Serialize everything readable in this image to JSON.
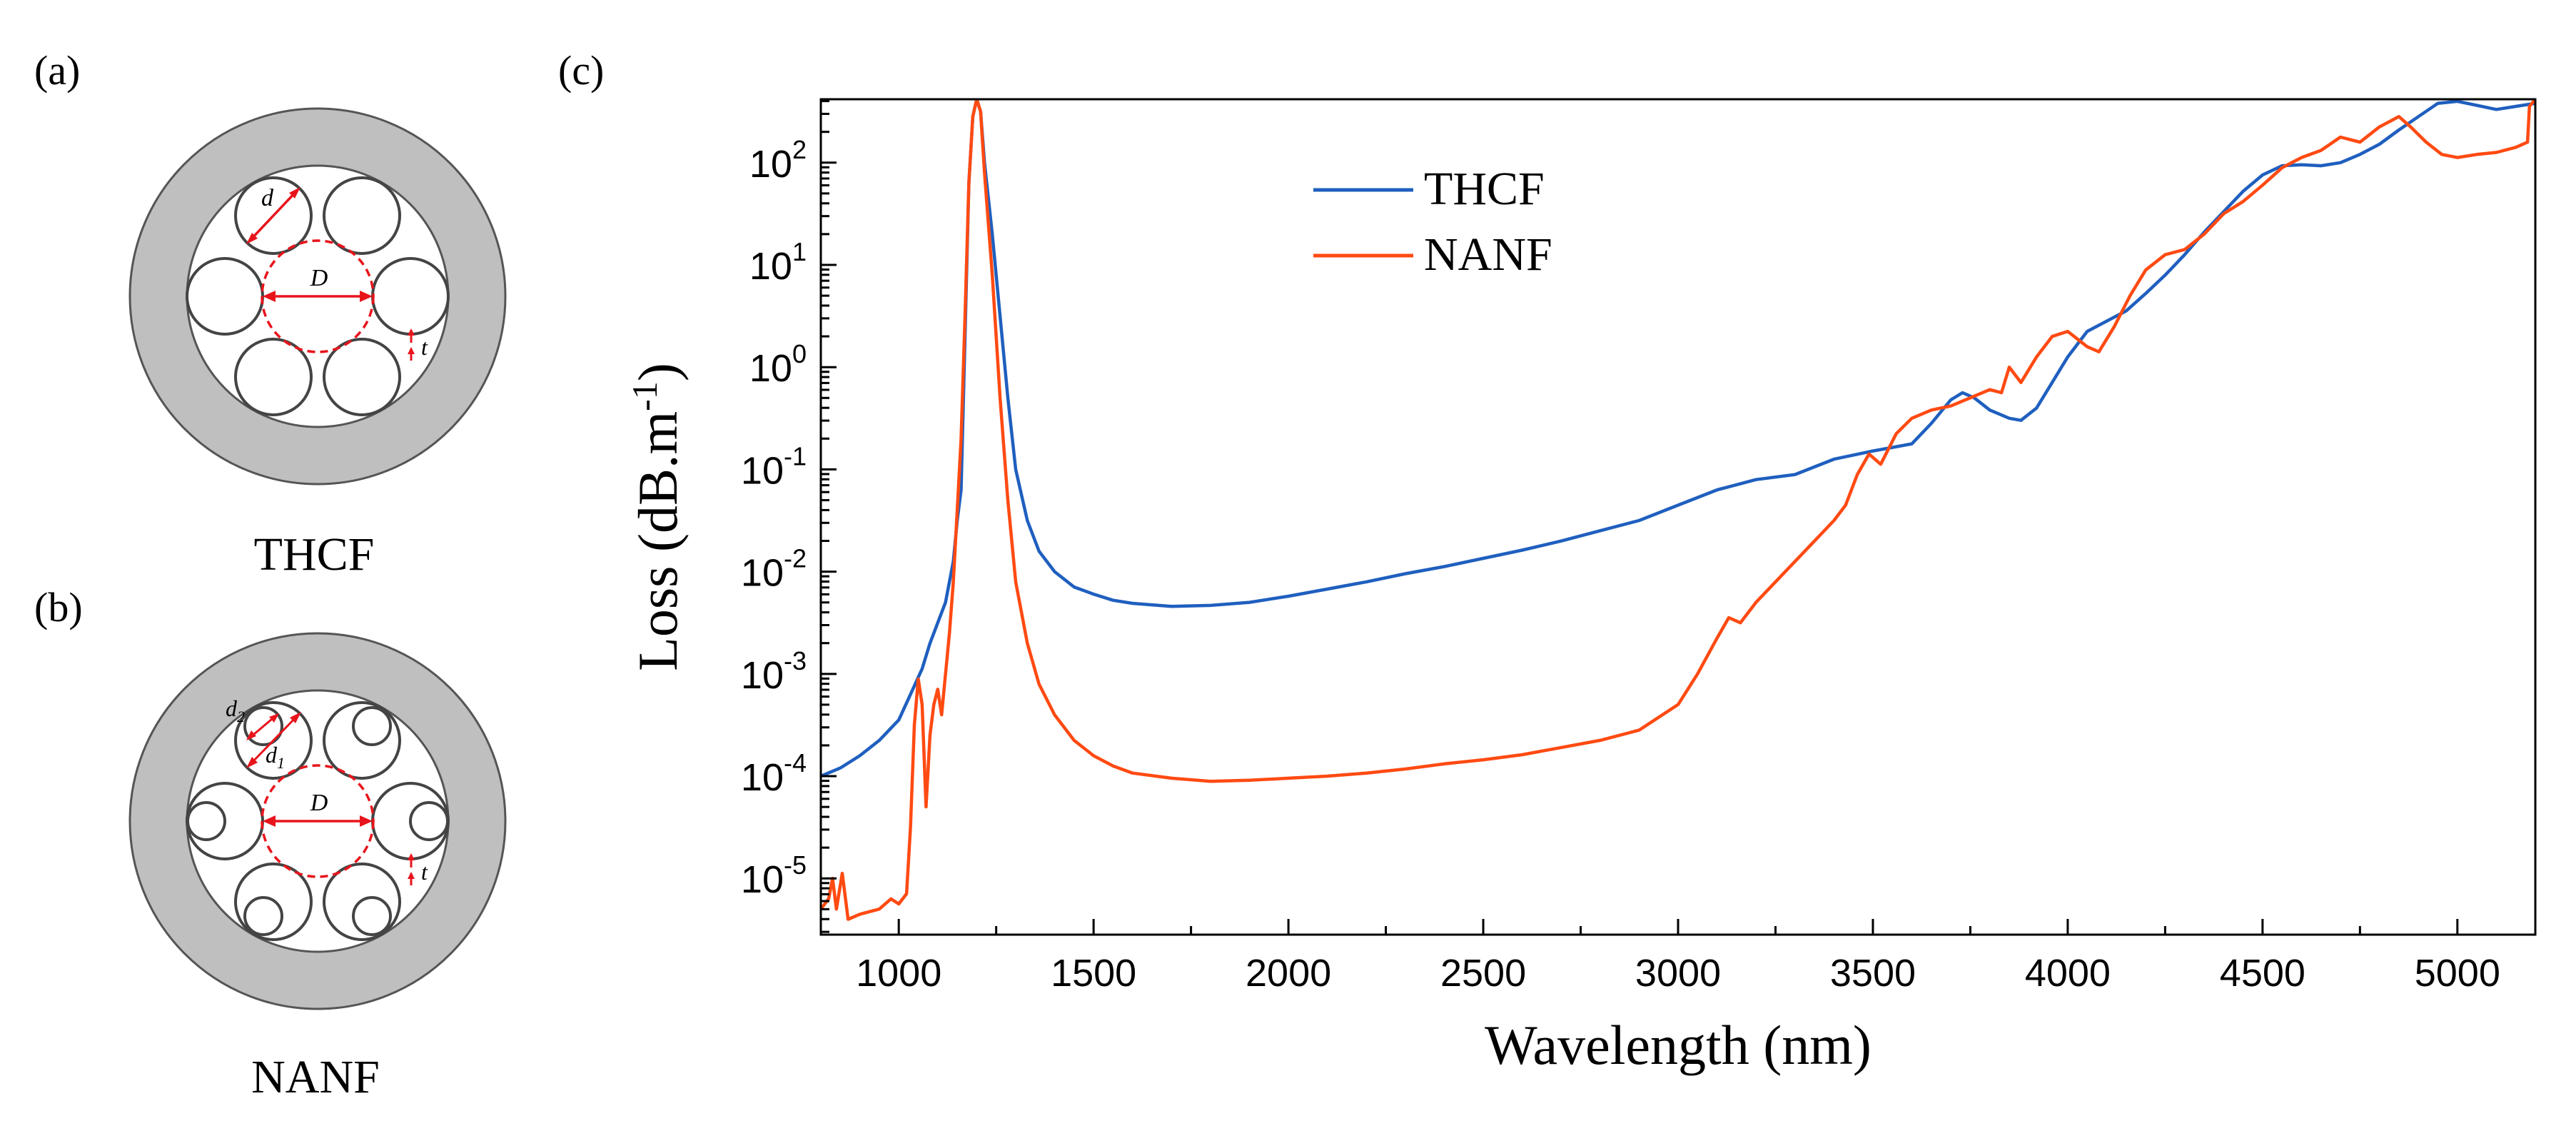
{
  "panels": {
    "a": {
      "panel_label": "(a)",
      "caption": "THCF",
      "dims": {
        "d": "d",
        "D": "D",
        "t": "t"
      }
    },
    "b": {
      "panel_label": "(b)",
      "caption": "NANF",
      "dims": {
        "d2": "d",
        "d2_sub": "2",
        "d1": "d",
        "d1_sub": "1",
        "D": "D",
        "t": "t"
      }
    },
    "c": {
      "panel_label": "(c)"
    }
  },
  "colors": {
    "thcf": "#1f5fbf",
    "nanf": "#ff4a12",
    "cladding": "#bfbfbf",
    "dim_red": "#e8141c"
  },
  "chart_data": {
    "type": "line",
    "xlabel": "Wavelength (nm)",
    "ylabel_main": "Loss (dB.m",
    "ylabel_sup": "-1",
    "ylabel_close": ")",
    "xlim": [
      800,
      5200
    ],
    "ylim_log10": [
      -5.55,
      2.62
    ],
    "yscale": "log",
    "xticks": [
      1000,
      1500,
      2000,
      2500,
      3000,
      3500,
      4000,
      4500,
      5000
    ],
    "yticks": [
      {
        "exp": 2,
        "base": "10",
        "sup": "2"
      },
      {
        "exp": 1,
        "base": "10",
        "sup": "1"
      },
      {
        "exp": 0,
        "base": "10",
        "sup": "0"
      },
      {
        "exp": -1,
        "base": "10",
        "sup": "-1"
      },
      {
        "exp": -2,
        "base": "10",
        "sup": "-2"
      },
      {
        "exp": -3,
        "base": "10",
        "sup": "-3"
      },
      {
        "exp": -4,
        "base": "10",
        "sup": "-4"
      },
      {
        "exp": -5,
        "base": "10",
        "sup": "-5"
      }
    ],
    "legend_position": "top-left",
    "series": [
      {
        "name": "THCF",
        "color": "#1f5fbf",
        "points": [
          [
            800,
            -4.0
          ],
          [
            850,
            -3.92
          ],
          [
            900,
            -3.8
          ],
          [
            950,
            -3.65
          ],
          [
            1000,
            -3.45
          ],
          [
            1030,
            -3.2
          ],
          [
            1060,
            -2.95
          ],
          [
            1080,
            -2.7
          ],
          [
            1100,
            -2.5
          ],
          [
            1120,
            -2.3
          ],
          [
            1140,
            -1.9
          ],
          [
            1150,
            -1.5
          ],
          [
            1160,
            -1.2
          ],
          [
            1170,
            0.3
          ],
          [
            1180,
            1.8
          ],
          [
            1190,
            2.45
          ],
          [
            1200,
            2.62
          ],
          [
            1210,
            2.5
          ],
          [
            1220,
            2.0
          ],
          [
            1240,
            1.3
          ],
          [
            1260,
            0.5
          ],
          [
            1280,
            -0.3
          ],
          [
            1300,
            -1.0
          ],
          [
            1330,
            -1.5
          ],
          [
            1360,
            -1.8
          ],
          [
            1400,
            -2.0
          ],
          [
            1450,
            -2.15
          ],
          [
            1500,
            -2.22
          ],
          [
            1550,
            -2.28
          ],
          [
            1600,
            -2.31
          ],
          [
            1700,
            -2.34
          ],
          [
            1800,
            -2.33
          ],
          [
            1900,
            -2.3
          ],
          [
            2000,
            -2.24
          ],
          [
            2100,
            -2.17
          ],
          [
            2200,
            -2.1
          ],
          [
            2300,
            -2.02
          ],
          [
            2400,
            -1.95
          ],
          [
            2500,
            -1.87
          ],
          [
            2600,
            -1.79
          ],
          [
            2700,
            -1.7
          ],
          [
            2800,
            -1.6
          ],
          [
            2900,
            -1.5
          ],
          [
            3000,
            -1.35
          ],
          [
            3100,
            -1.2
          ],
          [
            3200,
            -1.1
          ],
          [
            3300,
            -1.05
          ],
          [
            3400,
            -0.9
          ],
          [
            3500,
            -0.82
          ],
          [
            3600,
            -0.75
          ],
          [
            3650,
            -0.55
          ],
          [
            3700,
            -0.32
          ],
          [
            3730,
            -0.25
          ],
          [
            3760,
            -0.3
          ],
          [
            3800,
            -0.42
          ],
          [
            3850,
            -0.5
          ],
          [
            3880,
            -0.52
          ],
          [
            3920,
            -0.4
          ],
          [
            3960,
            -0.15
          ],
          [
            4000,
            0.1
          ],
          [
            4050,
            0.35
          ],
          [
            4100,
            0.45
          ],
          [
            4150,
            0.55
          ],
          [
            4200,
            0.72
          ],
          [
            4250,
            0.9
          ],
          [
            4300,
            1.1
          ],
          [
            4350,
            1.32
          ],
          [
            4400,
            1.52
          ],
          [
            4450,
            1.72
          ],
          [
            4500,
            1.88
          ],
          [
            4550,
            1.97
          ],
          [
            4600,
            1.98
          ],
          [
            4650,
            1.97
          ],
          [
            4700,
            2.0
          ],
          [
            4750,
            2.08
          ],
          [
            4800,
            2.18
          ],
          [
            4850,
            2.32
          ],
          [
            4900,
            2.45
          ],
          [
            4950,
            2.58
          ],
          [
            5000,
            2.6
          ],
          [
            5050,
            2.56
          ],
          [
            5100,
            2.52
          ],
          [
            5150,
            2.55
          ],
          [
            5200,
            2.58
          ]
        ]
      },
      {
        "name": "NANF",
        "color": "#ff4a12",
        "points": [
          [
            800,
            -5.3
          ],
          [
            820,
            -5.2
          ],
          [
            830,
            -5.0
          ],
          [
            840,
            -5.3
          ],
          [
            855,
            -4.95
          ],
          [
            870,
            -5.4
          ],
          [
            900,
            -5.35
          ],
          [
            950,
            -5.3
          ],
          [
            980,
            -5.2
          ],
          [
            1000,
            -5.25
          ],
          [
            1020,
            -5.15
          ],
          [
            1030,
            -4.5
          ],
          [
            1040,
            -3.5
          ],
          [
            1050,
            -3.05
          ],
          [
            1060,
            -3.3
          ],
          [
            1070,
            -4.3
          ],
          [
            1080,
            -3.6
          ],
          [
            1090,
            -3.3
          ],
          [
            1100,
            -3.15
          ],
          [
            1110,
            -3.4
          ],
          [
            1120,
            -3.0
          ],
          [
            1130,
            -2.6
          ],
          [
            1140,
            -2.1
          ],
          [
            1150,
            -1.4
          ],
          [
            1160,
            -0.7
          ],
          [
            1170,
            0.5
          ],
          [
            1180,
            1.8
          ],
          [
            1190,
            2.45
          ],
          [
            1200,
            2.62
          ],
          [
            1210,
            2.5
          ],
          [
            1220,
            1.9
          ],
          [
            1240,
            0.9
          ],
          [
            1260,
            -0.3
          ],
          [
            1280,
            -1.3
          ],
          [
            1300,
            -2.1
          ],
          [
            1330,
            -2.7
          ],
          [
            1360,
            -3.1
          ],
          [
            1400,
            -3.4
          ],
          [
            1450,
            -3.65
          ],
          [
            1500,
            -3.8
          ],
          [
            1550,
            -3.9
          ],
          [
            1600,
            -3.97
          ],
          [
            1700,
            -4.02
          ],
          [
            1800,
            -4.05
          ],
          [
            1900,
            -4.04
          ],
          [
            2000,
            -4.02
          ],
          [
            2100,
            -4.0
          ],
          [
            2200,
            -3.97
          ],
          [
            2300,
            -3.93
          ],
          [
            2400,
            -3.88
          ],
          [
            2500,
            -3.84
          ],
          [
            2600,
            -3.79
          ],
          [
            2700,
            -3.72
          ],
          [
            2800,
            -3.65
          ],
          [
            2900,
            -3.55
          ],
          [
            3000,
            -3.3
          ],
          [
            3050,
            -3.0
          ],
          [
            3100,
            -2.65
          ],
          [
            3130,
            -2.45
          ],
          [
            3160,
            -2.5
          ],
          [
            3200,
            -2.3
          ],
          [
            3250,
            -2.1
          ],
          [
            3300,
            -1.9
          ],
          [
            3350,
            -1.7
          ],
          [
            3400,
            -1.5
          ],
          [
            3430,
            -1.35
          ],
          [
            3460,
            -1.05
          ],
          [
            3490,
            -0.85
          ],
          [
            3520,
            -0.95
          ],
          [
            3560,
            -0.65
          ],
          [
            3600,
            -0.5
          ],
          [
            3650,
            -0.42
          ],
          [
            3700,
            -0.38
          ],
          [
            3750,
            -0.3
          ],
          [
            3800,
            -0.22
          ],
          [
            3830,
            -0.25
          ],
          [
            3850,
            0.0
          ],
          [
            3880,
            -0.15
          ],
          [
            3920,
            0.1
          ],
          [
            3960,
            0.3
          ],
          [
            4000,
            0.35
          ],
          [
            4050,
            0.2
          ],
          [
            4080,
            0.15
          ],
          [
            4120,
            0.4
          ],
          [
            4160,
            0.7
          ],
          [
            4200,
            0.95
          ],
          [
            4250,
            1.1
          ],
          [
            4300,
            1.15
          ],
          [
            4350,
            1.3
          ],
          [
            4400,
            1.5
          ],
          [
            4450,
            1.62
          ],
          [
            4500,
            1.78
          ],
          [
            4550,
            1.95
          ],
          [
            4600,
            2.05
          ],
          [
            4650,
            2.12
          ],
          [
            4700,
            2.25
          ],
          [
            4750,
            2.2
          ],
          [
            4800,
            2.35
          ],
          [
            4850,
            2.45
          ],
          [
            4880,
            2.35
          ],
          [
            4920,
            2.2
          ],
          [
            4960,
            2.08
          ],
          [
            5000,
            2.05
          ],
          [
            5050,
            2.08
          ],
          [
            5100,
            2.1
          ],
          [
            5150,
            2.15
          ],
          [
            5180,
            2.2
          ],
          [
            5185,
            2.55
          ],
          [
            5200,
            2.62
          ]
        ]
      }
    ]
  }
}
